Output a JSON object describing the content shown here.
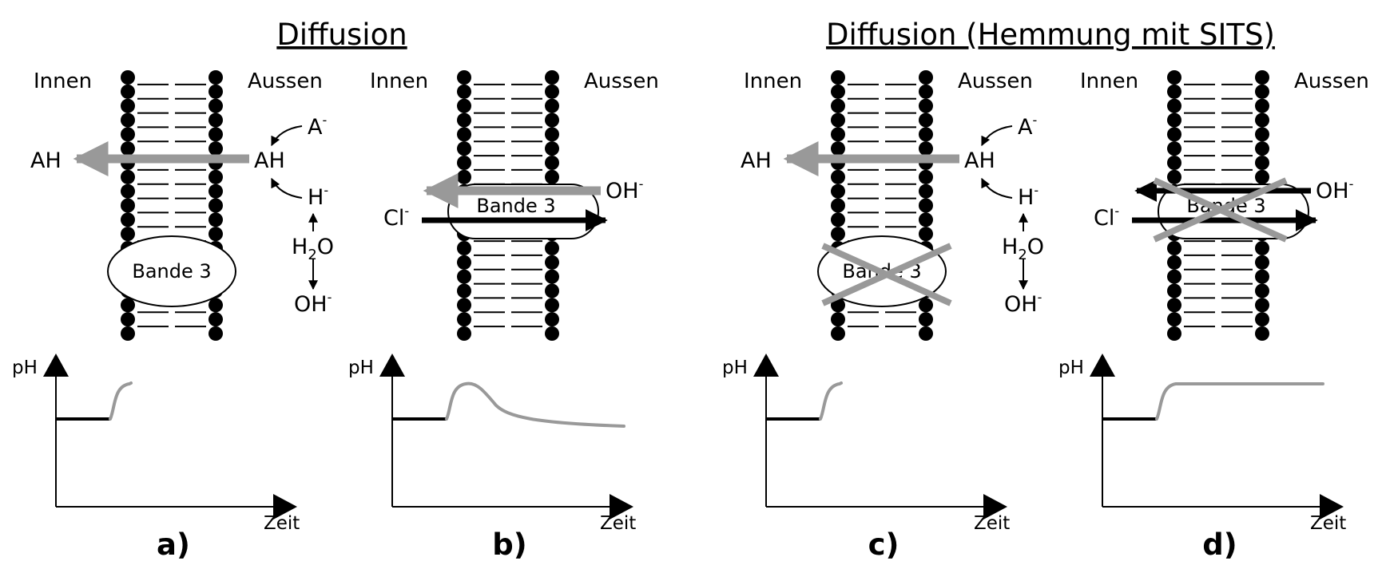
{
  "titles": {
    "left": "Diffusion",
    "right": "Diffusion (Hemmung mit SITS)"
  },
  "colors": {
    "ink": "#000000",
    "flux_gray": "#999999",
    "background": "#ffffff"
  },
  "panels": [
    {
      "id": "a",
      "label": "a)",
      "inside": "Innen",
      "outside": "Aussen",
      "protein": "Bande 3",
      "protein_blocked": false,
      "protein_in_path": false,
      "species": {
        "anion": "A",
        "acid_out": "AH",
        "acid_in": "AH",
        "proton": "H",
        "water": "H",
        "water_sub": "2",
        "water_o": "O",
        "hydroxide": "OH",
        "charge": "-"
      },
      "chart": {
        "ylabel": "pH",
        "xlabel": "Zeit",
        "trace": "rise"
      }
    },
    {
      "id": "b",
      "label": "b)",
      "inside": "Innen",
      "outside": "Aussen",
      "protein": "Bande 3",
      "protein_blocked": false,
      "protein_in_path": true,
      "species": {
        "hydroxide": "OH",
        "chloride": "Cl",
        "charge": "-"
      },
      "chart": {
        "ylabel": "pH",
        "xlabel": "Zeit",
        "trace": "rise-then-fall"
      }
    },
    {
      "id": "c",
      "label": "c)",
      "inside": "Innen",
      "outside": "Aussen",
      "protein": "Bande 3",
      "protein_blocked": true,
      "protein_in_path": false,
      "species": {
        "anion": "A",
        "acid_out": "AH",
        "acid_in": "AH",
        "proton": "H",
        "water": "H",
        "water_sub": "2",
        "water_o": "O",
        "hydroxide": "OH",
        "charge": "-"
      },
      "chart": {
        "ylabel": "pH",
        "xlabel": "Zeit",
        "trace": "rise"
      }
    },
    {
      "id": "d",
      "label": "d)",
      "inside": "Innen",
      "outside": "Aussen",
      "protein": "Bande 3",
      "protein_blocked": true,
      "protein_in_path": true,
      "species": {
        "hydroxide": "OH",
        "chloride": "Cl",
        "charge": "-"
      },
      "chart": {
        "ylabel": "pH",
        "xlabel": "Zeit",
        "trace": "rise-then-plateau"
      }
    }
  ]
}
